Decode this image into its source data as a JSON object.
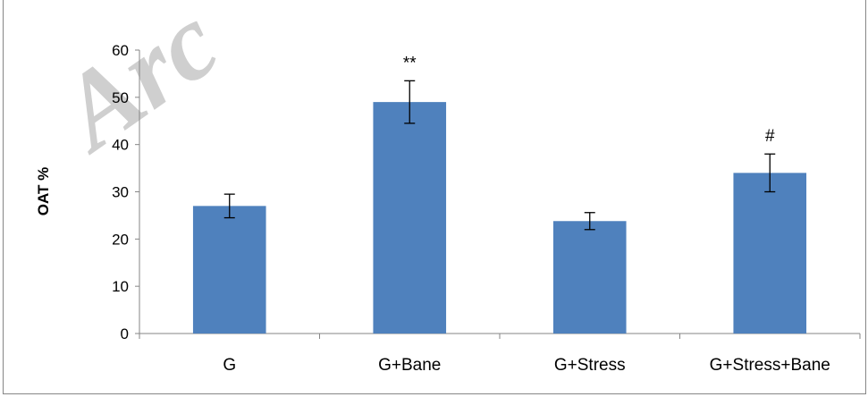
{
  "chart_data": {
    "type": "bar",
    "title": "",
    "xlabel": "",
    "ylabel": "OAT %",
    "ylim": [
      0,
      60
    ],
    "yticks": [
      0,
      10,
      20,
      30,
      40,
      50,
      60
    ],
    "grid": false,
    "legend": "none",
    "categories": [
      "G",
      "G+Bane",
      "G+Stress",
      "G+Stress+Bane"
    ],
    "values": [
      27,
      49,
      23.8,
      34
    ],
    "errors": [
      2.5,
      4.5,
      1.8,
      4
    ],
    "significance": [
      "",
      "**",
      "",
      "#"
    ],
    "bar_color": "#4f81bd"
  },
  "watermark": "Arc"
}
